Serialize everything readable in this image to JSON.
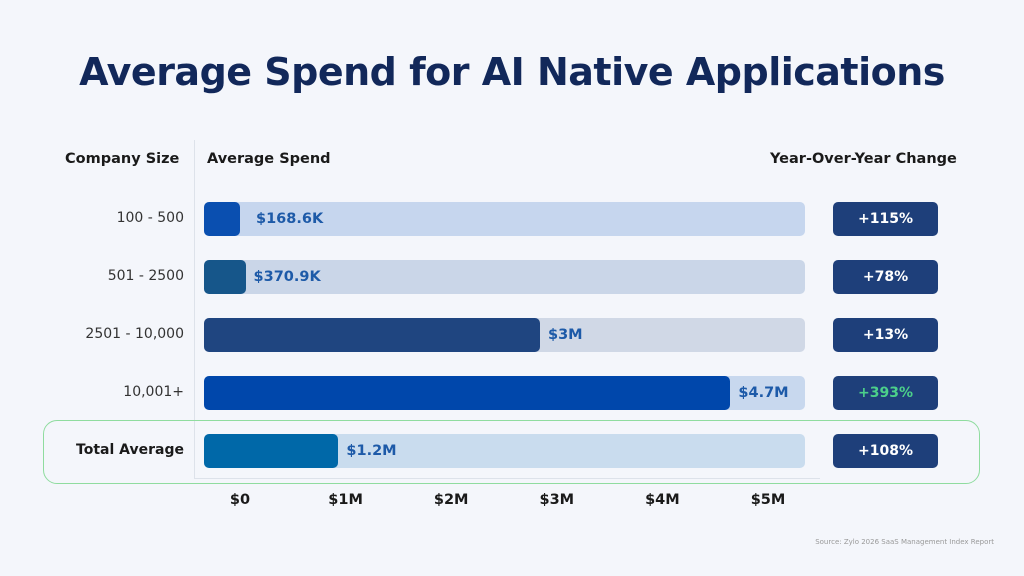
{
  "chart_data": {
    "type": "bar",
    "orientation": "horizontal",
    "title": "Average Spend for AI Native Applications",
    "category_header": "Company Size",
    "value_header": "Average Spend",
    "change_header": "Year-Over-Year Change",
    "categories": [
      "100 - 500",
      "501 - 2500",
      "2501 - 10,000",
      "10,001+",
      "Total Average"
    ],
    "values": [
      168600,
      370900,
      3000000,
      4700000,
      1200000
    ],
    "value_labels": [
      "$168.6K",
      "$370.9K",
      "$3M",
      "$4.7M",
      "$1.2M"
    ],
    "yoy_change": [
      "+115%",
      "+78%",
      "+13%",
      "+393%",
      "+108%"
    ],
    "xlim": [
      0,
      5000000
    ],
    "x_ticks": [
      0,
      1000000,
      2000000,
      3000000,
      4000000,
      5000000
    ],
    "x_tick_labels": [
      "$0",
      "$1M",
      "$2M",
      "$3M",
      "$4M",
      "$5M"
    ],
    "grid": false,
    "highlighted_category": "Total Average",
    "colors": {
      "fills": [
        "#0a4fb0",
        "#16568a",
        "#1f4580",
        "#0047ab",
        "#0068a8"
      ],
      "tracks": [
        "#c6d6ee",
        "#cad6e8",
        "#d0d8e6",
        "#c8d8ee",
        "#c9dcee"
      ],
      "badge": "#1e3f7a",
      "badge_text": "#ffffff",
      "badge_highlight_text": "#4cd08a",
      "highlight_border": "#8fdc9f",
      "value_label": "#1d5aa8"
    },
    "source": "Source: Zylo 2026 SaaS Management Index Report"
  }
}
